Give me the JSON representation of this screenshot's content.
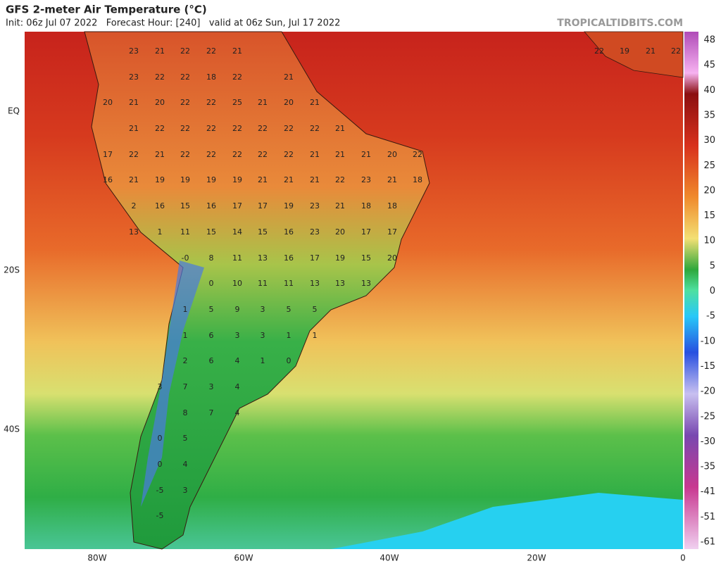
{
  "header": {
    "title": "GFS 2-meter Air Temperature (°C)",
    "subtitle": "Init: 06z Jul 07 2022   Forecast Hour: [240]   valid at 06z Sun, Jul 17 2022",
    "source": "TROPICALTIDBITS.COM"
  },
  "axes": {
    "x_labels": [
      "80W",
      "60W",
      "40W",
      "20W",
      "0"
    ],
    "y_labels": [
      "EQ",
      "20S",
      "40S"
    ]
  },
  "colorbar": {
    "labels": [
      "48",
      "45",
      "40",
      "35",
      "30",
      "25",
      "20",
      "15",
      "10",
      "5",
      "0",
      "-5",
      "-10",
      "-15",
      "-20",
      "-25",
      "-30",
      "-35",
      "-41",
      "-51",
      "-61"
    ]
  },
  "map_labels": [
    [
      "23",
      "21",
      "22",
      "22",
      "21",
      "22",
      "19",
      "21",
      "22"
    ],
    [
      "23",
      "22",
      "22",
      "18",
      "22",
      "21"
    ],
    [
      "20",
      "21",
      "20",
      "22",
      "22",
      "25",
      "21",
      "20",
      "21"
    ],
    [
      "21",
      "22",
      "22",
      "22",
      "22",
      "22",
      "22",
      "22",
      "21"
    ],
    [
      "17",
      "22",
      "21",
      "22",
      "22",
      "22",
      "22",
      "22",
      "21",
      "21",
      "21",
      "20",
      "22"
    ],
    [
      "16",
      "21",
      "19",
      "19",
      "19",
      "19",
      "21",
      "21",
      "21",
      "22",
      "23",
      "21",
      "18"
    ],
    [
      "2",
      "16",
      "15",
      "16",
      "17",
      "17",
      "19",
      "23",
      "21",
      "18",
      "18"
    ],
    [
      "13",
      "1",
      "11",
      "15",
      "14",
      "15",
      "16",
      "23",
      "20",
      "17",
      "17"
    ],
    [
      "-0",
      "8",
      "11",
      "13",
      "16",
      "17",
      "19",
      "15",
      "20"
    ],
    [
      "0",
      "10",
      "11",
      "11",
      "13",
      "13",
      "13"
    ],
    [
      "1",
      "5",
      "9",
      "3",
      "5",
      "5"
    ],
    [
      "1",
      "6",
      "3",
      "3",
      "1",
      "1"
    ],
    [
      "2",
      "6",
      "4",
      "1",
      "0"
    ],
    [
      "3",
      "7",
      "3",
      "4"
    ],
    [
      "8",
      "7",
      "4"
    ],
    [
      "0",
      "5"
    ],
    [
      "0",
      "4"
    ],
    [
      "-5",
      "3"
    ],
    [
      "-5"
    ]
  ]
}
